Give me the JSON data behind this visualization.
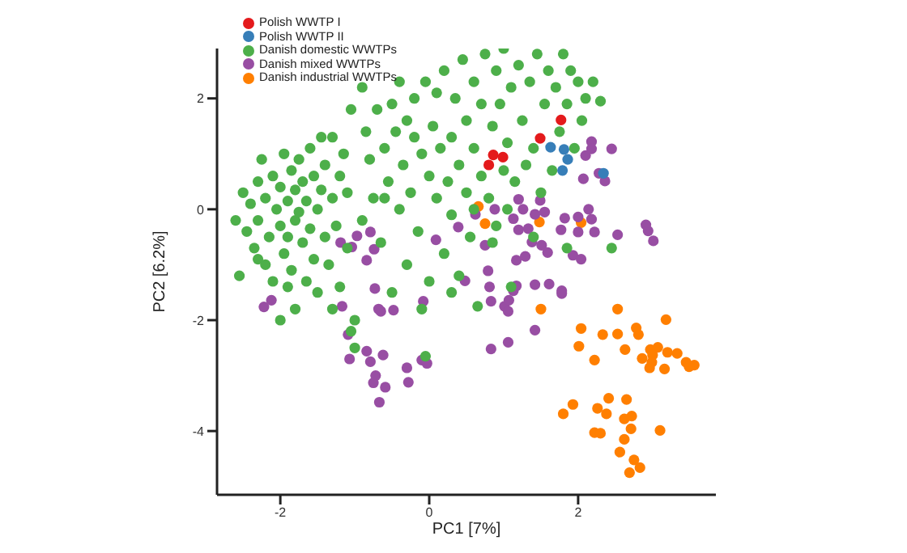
{
  "chart_data": {
    "type": "scatter",
    "xlabel": "PC1 [7%]",
    "ylabel": "PC2 [6.2%]",
    "xlim": [
      -2.85,
      3.85
    ],
    "ylim": [
      -5.15,
      2.9
    ],
    "xticks": [
      -2,
      0,
      2
    ],
    "yticks": [
      -4,
      -2,
      0,
      2
    ],
    "grid": false,
    "legend": "top left",
    "marker": "circle",
    "series": [
      {
        "name": "Polish WWTP I",
        "color": "#e41a1c",
        "x": [
          1.77,
          1.49,
          0.86,
          0.99,
          0.8
        ],
        "values": [
          1.61,
          1.28,
          0.98,
          0.94,
          0.8
        ]
      },
      {
        "name": "Polish WWTP II",
        "color": "#377eb8",
        "x": [
          1.63,
          1.81,
          1.86,
          1.79,
          2.34
        ],
        "values": [
          1.12,
          1.08,
          0.9,
          0.7,
          0.65
        ]
      },
      {
        "name": "Danish domestic WWTPs",
        "color": "#4daf4a",
        "x": [
          -2.6,
          -2.55,
          -2.5,
          -2.45,
          -2.4,
          -2.35,
          -2.3,
          -2.3,
          -2.25,
          -2.2,
          -2.2,
          -2.15,
          -2.1,
          -2.1,
          -2.05,
          -2.0,
          -2.0,
          -2.0,
          -1.95,
          -1.95,
          -1.9,
          -1.9,
          -1.85,
          -1.85,
          -1.8,
          -1.8,
          -1.75,
          -1.75,
          -1.7,
          -1.7,
          -1.65,
          -1.65,
          -1.6,
          -1.6,
          -1.55,
          -1.55,
          -1.5,
          -1.5,
          -1.45,
          -1.45,
          -1.4,
          -1.4,
          -1.35,
          -1.3,
          -1.3,
          -1.25,
          -1.2,
          -1.2,
          -1.15,
          -1.1,
          -1.1,
          -1.05,
          -1.8,
          -2.3,
          -1.9,
          -1.3,
          -1.0,
          -0.9,
          -0.9,
          -0.85,
          -0.8,
          -0.75,
          -0.7,
          -0.65,
          -0.6,
          -0.55,
          -0.5,
          -0.5,
          -0.45,
          -0.4,
          -0.4,
          -0.35,
          -0.3,
          -0.3,
          -0.25,
          -0.2,
          -0.15,
          -0.1,
          -0.1,
          -0.05,
          0.0,
          0.0,
          0.05,
          0.1,
          0.1,
          0.15,
          0.2,
          0.2,
          0.25,
          0.3,
          0.3,
          0.35,
          0.4,
          0.4,
          0.45,
          0.5,
          0.5,
          0.55,
          0.6,
          0.6,
          0.65,
          0.7,
          0.7,
          0.75,
          0.8,
          0.85,
          0.9,
          0.9,
          0.95,
          1.0,
          1.0,
          1.05,
          1.1,
          1.1,
          1.15,
          1.2,
          1.25,
          1.3,
          1.35,
          1.4,
          1.45,
          1.5,
          1.55,
          1.6,
          1.65,
          1.7,
          1.75,
          1.8,
          1.85,
          1.9,
          1.95,
          2.0,
          2.05,
          2.1,
          2.2,
          2.3,
          1.85,
          1.4,
          0.85,
          0.3,
          -0.6,
          -0.2,
          0.6,
          -1.05,
          -1.0,
          -0.05,
          1.05,
          2.45
        ],
        "values": [
          -0.2,
          -1.2,
          0.3,
          -0.4,
          0.1,
          -0.7,
          0.5,
          -0.2,
          0.9,
          -1.0,
          0.2,
          -0.5,
          0.6,
          -1.3,
          0.0,
          -0.3,
          0.4,
          -2.0,
          1.0,
          -0.8,
          0.15,
          -0.5,
          0.7,
          -1.1,
          0.35,
          -0.2,
          -0.05,
          0.9,
          -0.6,
          0.5,
          -1.3,
          0.15,
          -0.35,
          1.1,
          0.6,
          -0.9,
          0.0,
          -1.5,
          1.3,
          0.35,
          -0.5,
          0.8,
          -1.0,
          0.2,
          1.3,
          -0.3,
          0.6,
          -1.4,
          1.0,
          -0.7,
          0.3,
          1.8,
          -1.8,
          -0.9,
          -1.4,
          -1.8,
          -2.0,
          -0.2,
          2.2,
          1.4,
          0.9,
          0.2,
          1.8,
          -0.6,
          1.1,
          0.5,
          1.9,
          -1.5,
          1.4,
          0.0,
          2.3,
          0.8,
          -1.0,
          1.6,
          0.3,
          2.0,
          -0.4,
          1.0,
          -1.8,
          2.3,
          -1.3,
          0.6,
          1.5,
          0.2,
          2.1,
          1.1,
          -0.8,
          2.5,
          0.5,
          1.3,
          -0.1,
          2.0,
          0.8,
          -1.2,
          2.7,
          1.6,
          0.3,
          -0.5,
          1.1,
          2.3,
          -1.75,
          0.6,
          1.9,
          2.8,
          0.2,
          1.5,
          -0.3,
          2.5,
          1.9,
          0.7,
          2.9,
          1.2,
          2.2,
          -1.4,
          0.5,
          2.6,
          1.6,
          0.8,
          2.3,
          1.1,
          2.8,
          0.3,
          1.9,
          2.5,
          0.7,
          2.2,
          1.4,
          2.8,
          1.9,
          2.5,
          1.1,
          2.3,
          1.6,
          2.0,
          2.3,
          1.95,
          -0.7,
          -0.5,
          -0.6,
          -1.5,
          0.2,
          1.3,
          0.0,
          -2.2,
          -2.5,
          -2.65,
          0.0,
          -0.7
        ]
      },
      {
        "name": "Danish mixed WWTPs",
        "color": "#984ea3",
        "x": [
          -2.22,
          -2.12,
          -1.19,
          -0.97,
          -0.79,
          -1.04,
          -0.84,
          -0.74,
          -0.73,
          -1.17,
          -1.09,
          -1.07,
          -0.84,
          -0.79,
          -0.62,
          -0.72,
          -0.75,
          -0.59,
          -0.67,
          -0.68,
          -0.65,
          -0.48,
          -0.3,
          -0.28,
          -0.1,
          -0.03,
          0.09,
          0.39,
          0.75,
          0.79,
          0.81,
          0.83,
          1.01,
          1.06,
          1.07,
          1.17,
          1.2,
          1.26,
          1.49,
          1.55,
          1.42,
          1.2,
          1.33,
          1.38,
          1.51,
          1.59,
          1.17,
          1.29,
          1.42,
          1.61,
          1.78,
          1.78,
          1.93,
          2.04,
          1.77,
          1.82,
          2.0,
          2.0,
          2.22,
          2.18,
          2.53,
          2.91,
          2.94,
          3.01,
          2.07,
          2.28,
          2.1,
          2.18,
          2.18,
          2.45,
          2.36,
          1.42,
          1.06,
          0.83,
          0.62,
          0.88,
          -0.08,
          0.48,
          1.13,
          2.14,
          1.13
        ],
        "values": [
          -1.76,
          -1.64,
          -0.6,
          -0.48,
          -0.41,
          -0.68,
          -0.92,
          -0.72,
          -1.43,
          -1.75,
          -2.26,
          -2.7,
          -2.56,
          -2.75,
          -2.63,
          -3.0,
          -3.13,
          -3.21,
          -3.48,
          -1.8,
          -1.84,
          -1.82,
          -2.86,
          -3.12,
          -2.72,
          -2.78,
          -0.55,
          -0.32,
          -0.65,
          -1.11,
          -1.4,
          -1.66,
          -1.75,
          -1.84,
          -1.64,
          -1.38,
          0.18,
          0.0,
          0.16,
          -0.05,
          -0.09,
          -0.37,
          -0.35,
          -0.59,
          -0.65,
          -0.78,
          -0.92,
          -0.85,
          -1.36,
          -1.35,
          -1.47,
          -1.52,
          -0.83,
          -0.9,
          -0.37,
          -0.16,
          -0.14,
          -0.41,
          -0.41,
          -0.18,
          -0.46,
          -0.28,
          -0.39,
          -0.57,
          0.55,
          0.65,
          0.97,
          1.22,
          1.09,
          1.09,
          0.51,
          -2.18,
          -2.4,
          -2.52,
          -0.09,
          0.0,
          -1.66,
          -1.29,
          -1.47,
          0.0,
          -0.17
        ]
      },
      {
        "name": "Danish industrial WWTPs",
        "color": "#ff7f00",
        "x": [
          0.66,
          0.75,
          1.48,
          2.04,
          1.5,
          2.53,
          2.78,
          3.18,
          2.04,
          2.33,
          2.53,
          2.81,
          2.01,
          2.63,
          2.22,
          2.97,
          3.07,
          3.0,
          3.2,
          3.33,
          2.86,
          2.99,
          3.16,
          3.45,
          3.56,
          3.49,
          2.96,
          1.8,
          1.93,
          2.26,
          2.41,
          2.38,
          2.65,
          2.72,
          2.71,
          2.22,
          2.3,
          2.62,
          3.1,
          2.56,
          2.75,
          2.83,
          2.69,
          2.62
        ],
        "values": [
          0.05,
          -0.26,
          -0.23,
          -0.24,
          -1.8,
          -1.8,
          -2.14,
          -1.99,
          -2.15,
          -2.26,
          -2.25,
          -2.26,
          -2.47,
          -2.53,
          -2.72,
          -2.53,
          -2.49,
          -2.63,
          -2.58,
          -2.6,
          -2.69,
          -2.76,
          -2.88,
          -2.76,
          -2.81,
          -2.84,
          -2.86,
          -3.69,
          -3.52,
          -3.59,
          -3.41,
          -3.69,
          -3.43,
          -3.73,
          -3.96,
          -4.03,
          -4.04,
          -4.15,
          -3.99,
          -4.38,
          -4.52,
          -4.66,
          -4.75,
          -3.78
        ]
      }
    ]
  }
}
